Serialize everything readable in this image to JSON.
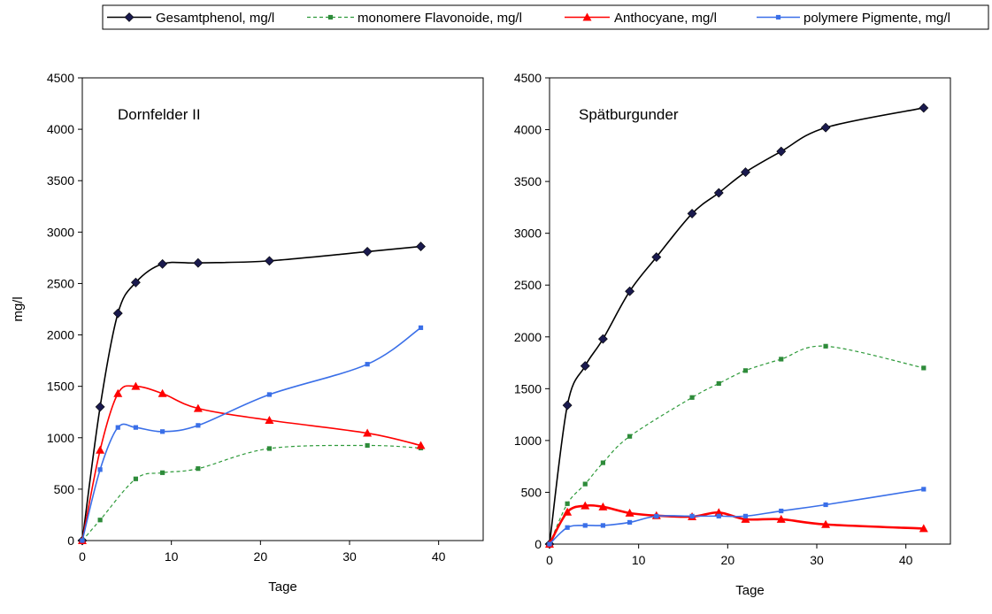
{
  "legend": {
    "items": [
      {
        "series": 0,
        "label": "Gesamtphenol, mg/l"
      },
      {
        "series": 1,
        "label": "monomere Flavonoide, mg/l"
      },
      {
        "series": 2,
        "label": "Anthocyane, mg/l"
      },
      {
        "series": 3,
        "label": "polymere Pigmente, mg/l"
      }
    ]
  },
  "series_styles": [
    {
      "color": "#000000",
      "marker": "diamond",
      "marker_color": "#1a1a4e",
      "dash": "",
      "width": 1.6
    },
    {
      "color": "#2e9a3a",
      "marker": "square",
      "marker_color": "#2e8b3a",
      "dash": "4,3",
      "width": 1.2
    },
    {
      "color": "#ff0000",
      "marker": "triangle",
      "marker_color": "#ff0000",
      "dash": "",
      "width": 1.6
    },
    {
      "color": "#3a6fe8",
      "marker": "square",
      "marker_color": "#3a6fe8",
      "dash": "",
      "width": 1.6
    }
  ],
  "chart_data": [
    {
      "type": "line",
      "title": "Dornfelder II",
      "xlabel": "Tage",
      "ylabel": "mg/l",
      "xlim": [
        0,
        45
      ],
      "ylim": [
        0,
        4500
      ],
      "xticks": [
        0,
        10,
        20,
        30,
        40
      ],
      "yticks": [
        0,
        500,
        1000,
        1500,
        2000,
        2500,
        3000,
        3500,
        4000,
        4500
      ],
      "grid": false,
      "legend": "top",
      "series": [
        {
          "name": "Gesamtphenol, mg/l",
          "x": [
            0,
            2,
            4,
            6,
            9,
            13,
            21,
            32,
            38
          ],
          "y": [
            0,
            1300,
            2210,
            2510,
            2690,
            2700,
            2720,
            2810,
            2860
          ]
        },
        {
          "name": "monomere Flavonoide, mg/l",
          "x": [
            0,
            2,
            6,
            9,
            13,
            21,
            32,
            38
          ],
          "y": [
            0,
            200,
            600,
            660,
            700,
            895,
            925,
            900
          ]
        },
        {
          "name": "Anthocyane, mg/l",
          "x": [
            0,
            2,
            4,
            6,
            9,
            13,
            21,
            32,
            38
          ],
          "y": [
            0,
            880,
            1430,
            1500,
            1430,
            1285,
            1170,
            1045,
            925
          ]
        },
        {
          "name": "polymere Pigmente, mg/l",
          "x": [
            0,
            2,
            4,
            6,
            9,
            13,
            21,
            32,
            38
          ],
          "y": [
            0,
            690,
            1100,
            1100,
            1060,
            1120,
            1420,
            1715,
            2070
          ]
        }
      ]
    },
    {
      "type": "line",
      "title": "Spätburgunder",
      "xlabel": "Tage",
      "ylabel": "",
      "xlim": [
        0,
        45
      ],
      "ylim": [
        0,
        4500
      ],
      "xticks": [
        0,
        10,
        20,
        30,
        40
      ],
      "yticks": [
        0,
        500,
        1000,
        1500,
        2000,
        2500,
        3000,
        3500,
        4000,
        4500
      ],
      "grid": false,
      "legend": "top",
      "series": [
        {
          "name": "Gesamtphenol, mg/l",
          "x": [
            0,
            2,
            4,
            6,
            9,
            12,
            16,
            19,
            22,
            26,
            31,
            42
          ],
          "y": [
            0,
            1340,
            1720,
            1980,
            2440,
            2770,
            3190,
            3390,
            3590,
            3790,
            4020,
            4210
          ]
        },
        {
          "name": "monomere Flavonoide, mg/l",
          "x": [
            0,
            2,
            4,
            6,
            9,
            16,
            19,
            22,
            26,
            31,
            42
          ],
          "y": [
            0,
            390,
            580,
            785,
            1040,
            1415,
            1550,
            1675,
            1785,
            1910,
            1700
          ]
        },
        {
          "name": "Anthocyane, mg/l",
          "x": [
            0,
            2,
            4,
            6,
            9,
            12,
            16,
            19,
            22,
            26,
            31,
            42
          ],
          "y": [
            0,
            310,
            370,
            360,
            300,
            275,
            265,
            305,
            240,
            240,
            190,
            150
          ]
        },
        {
          "name": "polymere Pigmente, mg/l",
          "x": [
            0,
            2,
            4,
            6,
            9,
            12,
            16,
            19,
            22,
            26,
            31,
            42
          ],
          "y": [
            0,
            160,
            180,
            180,
            210,
            270,
            270,
            270,
            270,
            320,
            380,
            530
          ]
        }
      ]
    }
  ]
}
